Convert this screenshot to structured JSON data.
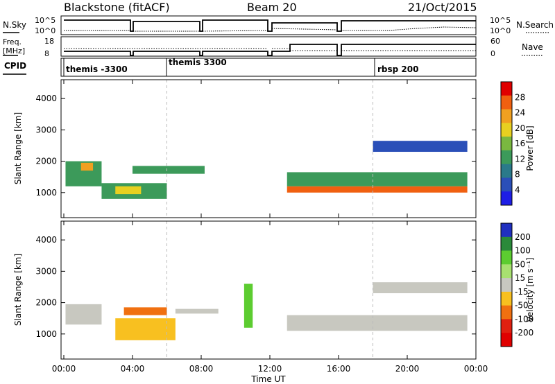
{
  "header": {
    "station": "Blackstone (fitACF)",
    "beam": "Beam 20",
    "date": "21/Oct/2015"
  },
  "noise_panel": {
    "left_label": "N.Sky",
    "right_label": "N.Search",
    "left_ticks": [
      "10^5",
      "10^0"
    ],
    "right_ticks": [
      "10^5",
      "10^0"
    ]
  },
  "freq_panel": {
    "left_label_line1": "Freq.",
    "left_label_line2": "[MHz]",
    "right_label": "Nave",
    "left_ticks": [
      "18",
      "8"
    ],
    "right_ticks": [
      "60",
      "0"
    ]
  },
  "cpid_panel": {
    "label": "CPID",
    "segments": [
      {
        "label": "themis -3300",
        "start_hour": 0.05
      },
      {
        "label": "themis 3300",
        "start_hour": 6.0
      },
      {
        "label": "rbsp 200",
        "start_hour": 18.0
      }
    ]
  },
  "x_axis": {
    "label": "Time UT",
    "ticks": [
      "00:00",
      "04:00",
      "08:00",
      "12:00",
      "16:00",
      "20:00",
      "00:00"
    ],
    "range_hours": [
      0,
      24
    ]
  },
  "power_panel": {
    "ylabel": "Slant Range [km]",
    "yticks": [
      "1000",
      "2000",
      "3000",
      "4000"
    ],
    "colorbar_label": "Power [dB]",
    "colorbar_ticks": [
      "4",
      "8",
      "12",
      "16",
      "20",
      "24",
      "28"
    ],
    "colors": [
      "#1e1ee6",
      "#2a4fb8",
      "#2a7a8a",
      "#3c9a5a",
      "#7ab840",
      "#e8d020",
      "#f0a020",
      "#f06010",
      "#e00000"
    ]
  },
  "velocity_panel": {
    "ylabel": "Slant Range [km]",
    "yticks": [
      "1000",
      "2000",
      "3000",
      "4000"
    ],
    "colorbar_label": "Velocity [m s⁻¹]",
    "colorbar_ticks": [
      "200",
      "100",
      "50",
      "15",
      "-15",
      "-50",
      "-100",
      "-200"
    ],
    "colors": [
      "#2030c0",
      "#2a8a3a",
      "#5ccc30",
      "#a8e070",
      "#c8c8c0",
      "#f8c020",
      "#f07010",
      "#e02010",
      "#e00000"
    ]
  },
  "chart_data": {
    "type": "heatmap",
    "x_range_hours": [
      0,
      24
    ],
    "y_range_km": [
      200,
      4600
    ],
    "power_bands": [
      {
        "t0": 0.1,
        "t1": 2.2,
        "r0": 1200,
        "r1": 2000,
        "power_db": 14
      },
      {
        "t0": 1.0,
        "t1": 1.7,
        "r0": 1700,
        "r1": 1950,
        "power_db": 22
      },
      {
        "t0": 2.2,
        "t1": 6.0,
        "r0": 800,
        "r1": 1300,
        "power_db": 14
      },
      {
        "t0": 3.0,
        "t1": 4.5,
        "r0": 950,
        "r1": 1200,
        "power_db": 20
      },
      {
        "t0": 4.0,
        "t1": 8.2,
        "r0": 1600,
        "r1": 1850,
        "power_db": 14
      },
      {
        "t0": 13.0,
        "t1": 23.5,
        "r0": 1000,
        "r1": 1200,
        "power_db": 26
      },
      {
        "t0": 13.0,
        "t1": 23.5,
        "r0": 1200,
        "r1": 1650,
        "power_db": 11
      },
      {
        "t0": 18.0,
        "t1": 23.5,
        "r0": 2300,
        "r1": 2650,
        "power_db": 6
      }
    ],
    "velocity_bands": [
      {
        "t0": 0.1,
        "t1": 2.2,
        "r0": 1300,
        "r1": 1950,
        "velocity": 0
      },
      {
        "t0": 3.0,
        "t1": 6.5,
        "r0": 800,
        "r1": 1500,
        "velocity": -40
      },
      {
        "t0": 3.5,
        "t1": 6.0,
        "r0": 1600,
        "r1": 1850,
        "velocity": -100
      },
      {
        "t0": 6.5,
        "t1": 9.0,
        "r0": 1650,
        "r1": 1800,
        "velocity": 0
      },
      {
        "t0": 10.5,
        "t1": 11.0,
        "r0": 1200,
        "r1": 2600,
        "velocity": 40
      },
      {
        "t0": 13.0,
        "t1": 23.5,
        "r0": 1100,
        "r1": 1600,
        "velocity": 0
      },
      {
        "t0": 18.0,
        "t1": 23.5,
        "r0": 2300,
        "r1": 2650,
        "velocity": 0
      }
    ]
  }
}
